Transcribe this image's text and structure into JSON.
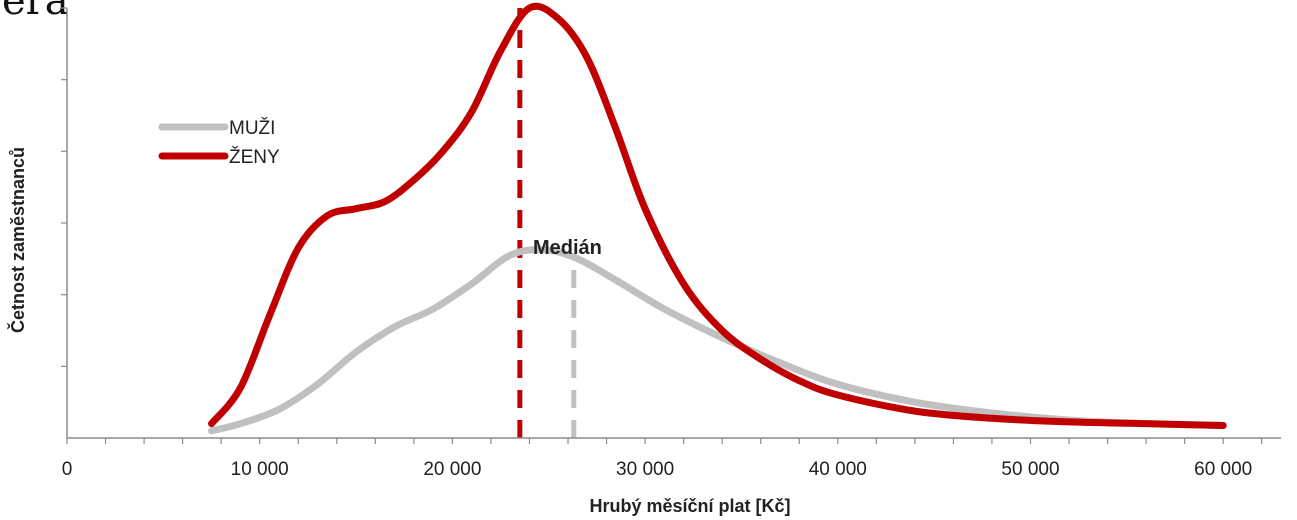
{
  "page": {
    "title_fragment": "era"
  },
  "chart_data": {
    "type": "line",
    "title": "",
    "xlabel": "Hrubý měsíční plat [Kč]",
    "ylabel": "Četnost zaměstnanců",
    "xlim": [
      0,
      63000
    ],
    "ylim": [
      0,
      1.2
    ],
    "x_ticks": [
      0,
      10000,
      20000,
      30000,
      40000,
      50000,
      60000
    ],
    "x_tick_labels": [
      "0",
      "10 000",
      "20 000",
      "30 000",
      "40 000",
      "50 000",
      "60 000"
    ],
    "x_minor_step": 2000,
    "y_ticks": [
      0.2,
      0.4,
      0.6,
      0.8,
      1.0,
      1.2
    ],
    "y_tick_labels_shown": false,
    "grid": false,
    "legend": "top-left",
    "series": [
      {
        "name": "MUŽI",
        "color": "#c0c0c0",
        "x": [
          7500,
          9000,
          11000,
          13000,
          15000,
          17000,
          19000,
          21000,
          23000,
          24800,
          26500,
          28500,
          31000,
          34000,
          37000,
          40000,
          44000,
          48000,
          52000,
          56000,
          60000
        ],
        "y": [
          0.02,
          0.04,
          0.08,
          0.15,
          0.24,
          0.31,
          0.36,
          0.43,
          0.51,
          0.525,
          0.5,
          0.44,
          0.36,
          0.28,
          0.21,
          0.15,
          0.1,
          0.07,
          0.05,
          0.04,
          0.035
        ]
      },
      {
        "name": "ŽENY",
        "color": "#c00000",
        "x": [
          7500,
          9000,
          10500,
          12000,
          13500,
          15000,
          16500,
          18000,
          19500,
          21000,
          22500,
          24000,
          25500,
          27000,
          28500,
          30000,
          32000,
          34000,
          36000,
          38000,
          40000,
          44000,
          48000,
          52000,
          56000,
          60000
        ],
        "y": [
          0.04,
          0.14,
          0.34,
          0.53,
          0.62,
          0.64,
          0.66,
          0.72,
          0.8,
          0.91,
          1.08,
          1.2,
          1.17,
          1.06,
          0.86,
          0.64,
          0.43,
          0.3,
          0.22,
          0.16,
          0.12,
          0.075,
          0.055,
          0.045,
          0.04,
          0.035
        ]
      }
    ],
    "median_lines": [
      {
        "series": "ŽENY",
        "x": 23500,
        "y_top": 1.2,
        "color": "#c00000"
      },
      {
        "series": "MUŽI",
        "x": 26300,
        "y_top": 0.5,
        "color": "#c0c0c0"
      }
    ],
    "annotations": [
      {
        "text": "Medián",
        "x": 24000,
        "y": 0.6
      }
    ]
  }
}
